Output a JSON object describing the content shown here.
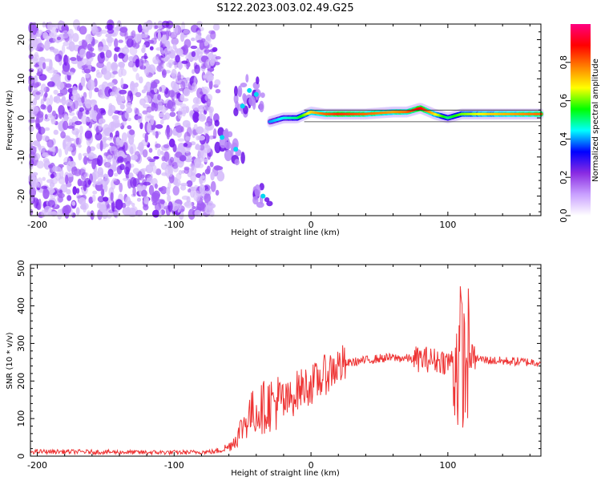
{
  "title": "S122.2023.003.02.49.G25",
  "chart_data": [
    {
      "type": "heatmap",
      "xlabel": "Height of straight line (km)",
      "ylabel": "Frequency (Hz)",
      "xlim": [
        -205,
        168
      ],
      "ylim": [
        -25,
        24
      ],
      "x_ticks": [
        -200,
        -100,
        0,
        100
      ],
      "y_ticks": [
        -20,
        -10,
        0,
        10,
        20
      ],
      "colorbar": {
        "label": "Normalized spectral amplitude",
        "range": [
          0,
          1
        ],
        "ticks": [
          "0.0",
          "0.2",
          "0.4",
          "0.6",
          "0.8"
        ],
        "colormap": [
          "#ffffff",
          "#c9a0ff",
          "#8a2be2",
          "#0000ff",
          "#00ffff",
          "#00ff00",
          "#ffff00",
          "#ff8000",
          "#ff0000",
          "#ff0080"
        ]
      },
      "noise_region": {
        "x": [
          -205,
          -72
        ],
        "y": [
          -25,
          24
        ],
        "amplitude": 0.15
      },
      "dispersed_segment": {
        "points": [
          [
            -65,
            -5
          ],
          [
            -55,
            -8
          ],
          [
            -50,
            3
          ],
          [
            -45,
            7
          ],
          [
            -40,
            6
          ],
          [
            -35,
            -20
          ]
        ],
        "amplitude": 0.35
      },
      "ridge": {
        "x": [
          -30,
          -20,
          -10,
          0,
          10,
          20,
          40,
          60,
          70,
          80,
          90,
          100,
          110,
          130,
          150,
          168
        ],
        "y": [
          -1,
          0,
          0,
          1.5,
          1,
          1,
          1,
          1.5,
          1.5,
          2.5,
          1,
          0,
          1,
          1,
          1,
          1
        ],
        "amplitude": [
          0.4,
          0.45,
          0.5,
          0.7,
          0.8,
          0.85,
          0.8,
          0.75,
          0.8,
          0.9,
          0.7,
          0.5,
          0.6,
          0.7,
          0.75,
          0.8
        ]
      },
      "ridge_bounds": [
        -1,
        2
      ]
    },
    {
      "type": "line",
      "xlabel": "Height of straight line (km)",
      "ylabel": "SNR (10 * v/v)",
      "xlim": [
        -205,
        168
      ],
      "ylim": [
        0,
        510
      ],
      "x_ticks": [
        -200,
        -100,
        0,
        100
      ],
      "y_ticks": [
        0,
        100,
        200,
        300,
        400,
        500
      ],
      "series": [
        {
          "color": "#ee3333",
          "x": [
            -205,
            -180,
            -150,
            -120,
            -90,
            -70,
            -60,
            -55,
            -50,
            -45,
            -40,
            -35,
            -30,
            -25,
            -20,
            -15,
            -10,
            -5,
            0,
            5,
            10,
            15,
            20,
            30,
            40,
            50,
            60,
            70,
            80,
            85,
            90,
            95,
            100,
            105,
            108,
            110,
            112,
            115,
            120,
            130,
            140,
            150,
            160,
            168
          ],
          "y": [
            12,
            12,
            11,
            10,
            10,
            12,
            25,
            45,
            80,
            110,
            120,
            130,
            140,
            145,
            140,
            150,
            175,
            185,
            190,
            200,
            215,
            230,
            240,
            250,
            255,
            260,
            262,
            260,
            258,
            258,
            255,
            255,
            250,
            260,
            240,
            300,
            220,
            270,
            260,
            255,
            253,
            252,
            250,
            250
          ]
        }
      ]
    }
  ]
}
